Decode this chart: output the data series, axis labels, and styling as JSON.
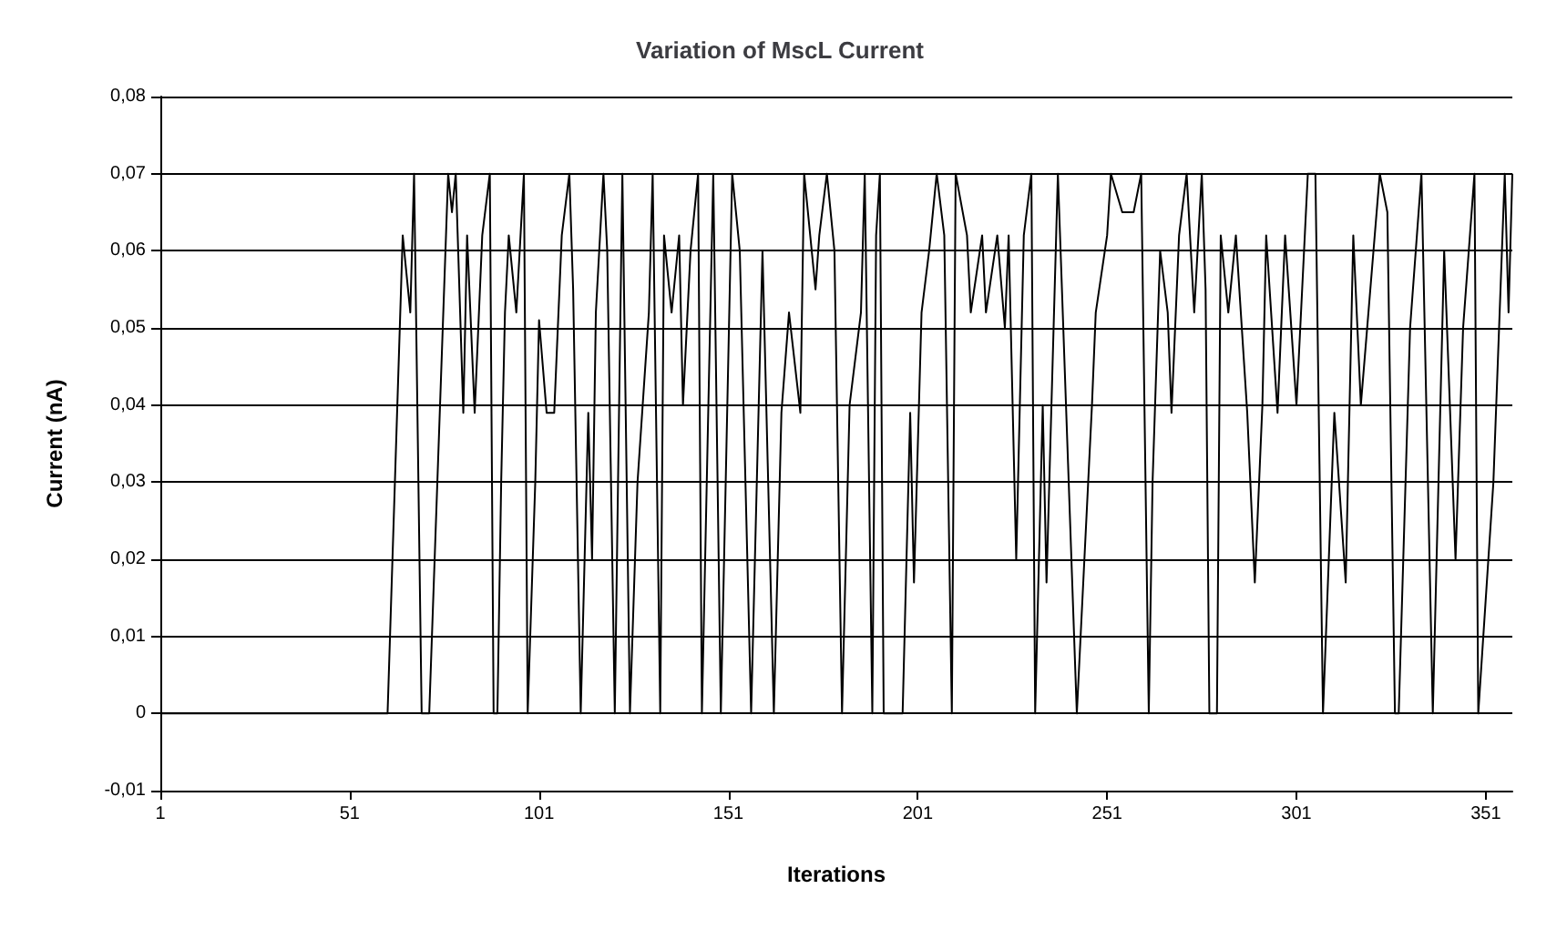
{
  "chart_data": {
    "type": "line",
    "title": "Variation of MscL Current",
    "xlabel": "Iterations",
    "ylabel": "Current (nA)",
    "xlim": [
      1,
      358
    ],
    "xticks": [
      1,
      51,
      101,
      151,
      201,
      251,
      301,
      351
    ],
    "ylim": [
      -0.01,
      0.08
    ],
    "yticks": [
      {
        "value": -0.01,
        "label": "-0,01"
      },
      {
        "value": 0,
        "label": "0"
      },
      {
        "value": 0.01,
        "label": "0,01"
      },
      {
        "value": 0.02,
        "label": "0,02"
      },
      {
        "value": 0.03,
        "label": "0,03"
      },
      {
        "value": 0.04,
        "label": "0,04"
      },
      {
        "value": 0.05,
        "label": "0,05"
      },
      {
        "value": 0.06,
        "label": "0,06"
      },
      {
        "value": 0.07,
        "label": "0,07"
      },
      {
        "value": 0.08,
        "label": "0,08"
      }
    ],
    "grid": "y",
    "marker": "none",
    "line_style": "solid",
    "x": [
      1,
      61,
      65,
      67,
      68,
      70,
      72,
      77,
      78,
      79,
      81,
      82,
      84,
      86,
      88,
      89,
      90,
      91,
      92,
      93,
      95,
      97,
      98,
      100,
      101,
      103,
      105,
      107,
      109,
      110,
      112,
      114,
      115,
      116,
      118,
      119,
      121,
      123,
      125,
      127,
      130,
      131,
      133,
      134,
      136,
      138,
      139,
      141,
      143,
      144,
      147,
      149,
      152,
      154,
      157,
      160,
      163,
      165,
      167,
      170,
      171,
      174,
      175,
      177,
      179,
      181,
      183,
      186,
      187,
      189,
      190,
      191,
      192,
      197,
      199,
      200,
      202,
      204,
      206,
      208,
      210,
      211,
      214,
      215,
      218,
      219,
      222,
      224,
      225,
      227,
      229,
      231,
      232,
      234,
      235,
      238,
      243,
      247,
      248,
      251,
      252,
      255,
      258,
      260,
      262,
      263,
      265,
      267,
      268,
      270,
      272,
      274,
      276,
      277,
      278,
      280,
      281,
      283,
      285,
      288,
      290,
      292,
      293,
      296,
      298,
      301,
      304,
      306,
      308,
      311,
      314,
      316,
      318,
      323,
      325,
      327,
      328,
      331,
      334,
      337,
      340,
      343,
      345,
      348,
      349,
      353,
      356,
      357,
      358
    ],
    "series": [
      {
        "color": "#000000",
        "values": [
          0,
          0,
          0.062,
          0.052,
          0.07,
          0,
          0,
          0.07,
          0.065,
          0.07,
          0.039,
          0.062,
          0.039,
          0.062,
          0.07,
          0,
          0,
          0.03,
          0.052,
          0.062,
          0.052,
          0.07,
          0,
          0.03,
          0.051,
          0.039,
          0.039,
          0.062,
          0.07,
          0.055,
          0,
          0.039,
          0.02,
          0.052,
          0.07,
          0.06,
          0,
          0.07,
          0,
          0.03,
          0.052,
          0.07,
          0,
          0.062,
          0.052,
          0.062,
          0.04,
          0.06,
          0.07,
          0,
          0.07,
          0,
          0.07,
          0.06,
          0,
          0.06,
          0,
          0.039,
          0.052,
          0.039,
          0.07,
          0.055,
          0.062,
          0.07,
          0.06,
          0,
          0.04,
          0.052,
          0.07,
          0,
          0.062,
          0.07,
          0,
          0,
          0.039,
          0.017,
          0.052,
          0.06,
          0.07,
          0.062,
          0,
          0.07,
          0.062,
          0.052,
          0.062,
          0.052,
          0.062,
          0.05,
          0.062,
          0.02,
          0.062,
          0.07,
          0,
          0.04,
          0.017,
          0.07,
          0,
          0.04,
          0.052,
          0.062,
          0.07,
          0.065,
          0.065,
          0.07,
          0,
          0.03,
          0.06,
          0.052,
          0.039,
          0.062,
          0.07,
          0.052,
          0.07,
          0.055,
          0,
          0,
          0.062,
          0.052,
          0.062,
          0.039,
          0.017,
          0.04,
          0.062,
          0.039,
          0.062,
          0.04,
          0.07,
          0.07,
          0,
          0.039,
          0.017,
          0.062,
          0.04,
          0.07,
          0.065,
          0,
          0,
          0.05,
          0.07,
          0,
          0.06,
          0.02,
          0.05,
          0.07,
          0,
          0.03,
          0.07,
          0.052,
          0.07
        ]
      }
    ]
  }
}
